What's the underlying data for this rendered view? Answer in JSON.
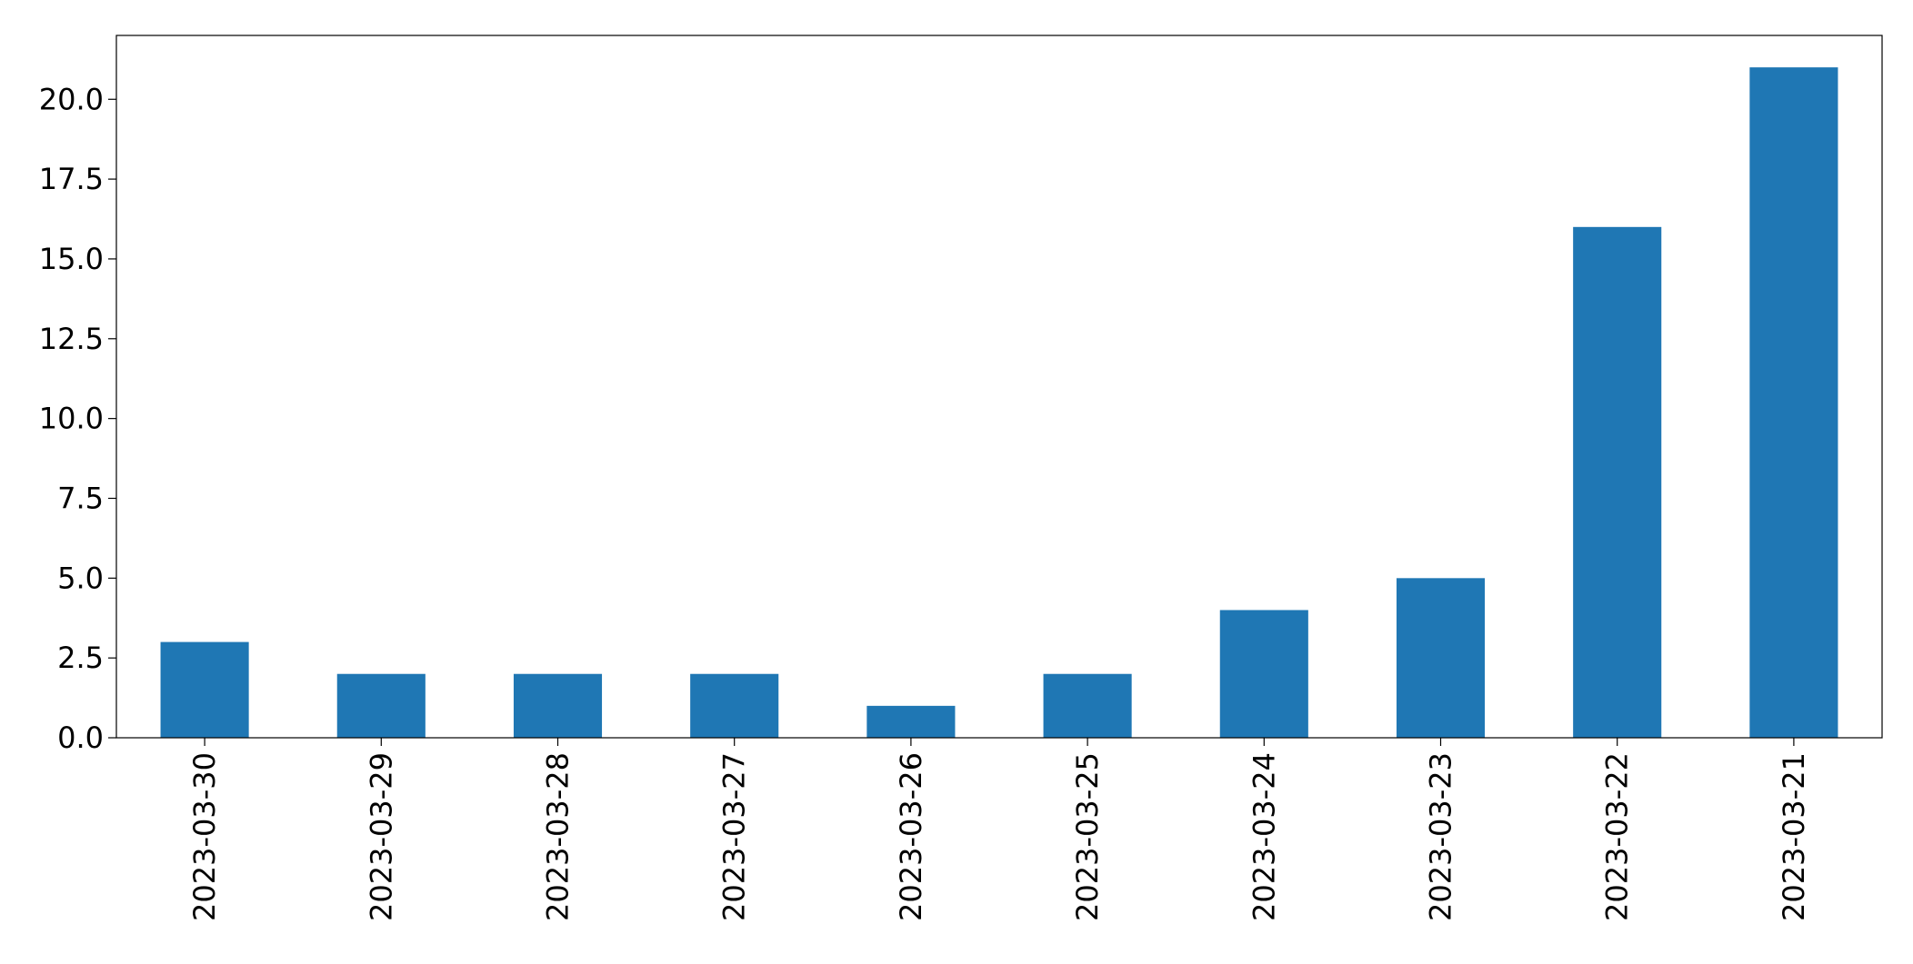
{
  "chart_data": {
    "type": "bar",
    "categories": [
      "2023-03-30",
      "2023-03-29",
      "2023-03-28",
      "2023-03-27",
      "2023-03-26",
      "2023-03-25",
      "2023-03-24",
      "2023-03-23",
      "2023-03-22",
      "2023-03-21"
    ],
    "values": [
      3,
      2,
      2,
      2,
      1,
      2,
      4,
      5,
      16,
      21
    ],
    "title": "",
    "xlabel": "",
    "ylabel": "",
    "ylim": [
      0,
      22
    ],
    "yticks": [
      "0.0",
      "2.5",
      "5.0",
      "7.5",
      "10.0",
      "12.5",
      "15.0",
      "17.5",
      "20.0"
    ],
    "grid": false,
    "legend": "none",
    "bar_color": "#1f77b4"
  }
}
